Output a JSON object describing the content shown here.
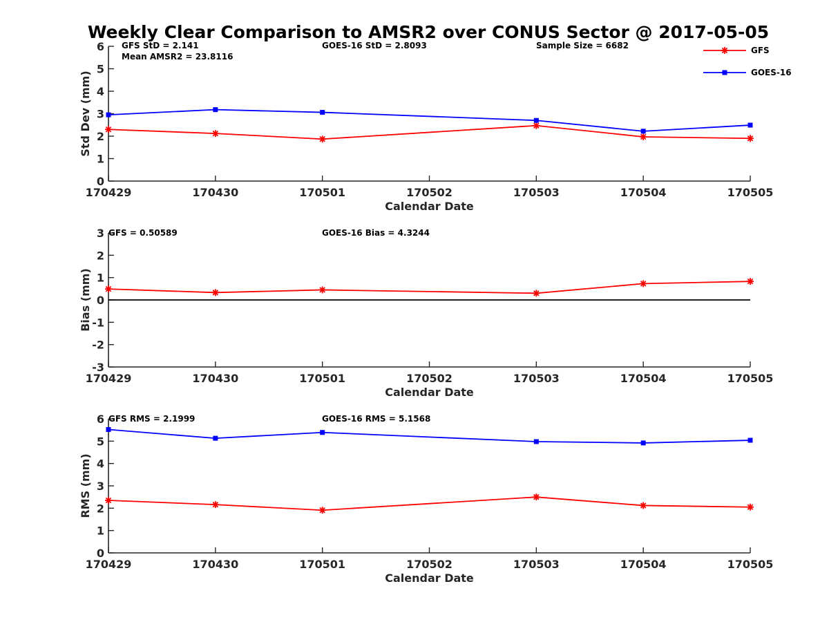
{
  "title": "Weekly Clear Comparison to AMSR2 over CONUS Sector @ 2017-05-05",
  "colors": {
    "GFS": "#ff0000",
    "GOES-16": "#0000ff",
    "axis": "#262626",
    "zero_line": "#000000"
  },
  "legend": {
    "placement": "top-right",
    "entries": [
      "GFS",
      "GOES-16"
    ]
  },
  "chart_data": [
    {
      "type": "line",
      "x": [
        "170429",
        "170430",
        "170501",
        "170503",
        "170504",
        "170505"
      ],
      "x_dates": [
        "2017-04-29",
        "2017-04-30",
        "2017-05-01",
        "2017-05-03",
        "2017-05-04",
        "2017-05-05"
      ],
      "xticks": [
        "170429",
        "170430",
        "170501",
        "170502",
        "170503",
        "170504",
        "170505"
      ],
      "xtick_dates": [
        "2017-04-29",
        "2017-04-30",
        "2017-05-01",
        "2017-05-02",
        "2017-05-03",
        "2017-05-04",
        "2017-05-05"
      ],
      "xlabel": "Calendar Date",
      "ylabel": "Std Dev (mm)",
      "ylim": [
        0,
        6
      ],
      "yticks": [
        0,
        1,
        2,
        3,
        4,
        5,
        6
      ],
      "grid": false,
      "series": [
        {
          "name": "GFS",
          "marker": "asterisk",
          "values": [
            2.3,
            2.12,
            1.87,
            2.47,
            1.97,
            1.9
          ]
        },
        {
          "name": "GOES-16",
          "marker": "square",
          "values": [
            2.95,
            3.18,
            3.06,
            2.7,
            2.22,
            2.49
          ]
        }
      ],
      "annotations": [
        "GFS StD = 2.141",
        "Mean AMSR2 = 23.8116",
        "GOES-16 StD = 2.8093",
        "Sample Size = 6682"
      ]
    },
    {
      "type": "line",
      "x": [
        "170429",
        "170430",
        "170501",
        "170503",
        "170504",
        "170505"
      ],
      "x_dates": [
        "2017-04-29",
        "2017-04-30",
        "2017-05-01",
        "2017-05-03",
        "2017-05-04",
        "2017-05-05"
      ],
      "xticks": [
        "170429",
        "170430",
        "170501",
        "170502",
        "170503",
        "170504",
        "170505"
      ],
      "xtick_dates": [
        "2017-04-29",
        "2017-04-30",
        "2017-05-01",
        "2017-05-02",
        "2017-05-03",
        "2017-05-04",
        "2017-05-05"
      ],
      "xlabel": "Calendar Date",
      "ylabel": "Bias (mm)",
      "ylim": [
        -3,
        3
      ],
      "yticks": [
        "-3",
        "-2",
        "-1",
        "0",
        "1",
        "2",
        "3"
      ],
      "grid": false,
      "reference_line": 0,
      "series": [
        {
          "name": "GFS",
          "marker": "asterisk",
          "values": [
            0.49,
            0.33,
            0.45,
            0.3,
            0.73,
            0.83
          ]
        }
      ],
      "annotations": [
        "GFS = 0.50589",
        "GOES-16 Bias  = 4.3244"
      ]
    },
    {
      "type": "line",
      "x": [
        "170429",
        "170430",
        "170501",
        "170503",
        "170504",
        "170505"
      ],
      "x_dates": [
        "2017-04-29",
        "2017-04-30",
        "2017-05-01",
        "2017-05-03",
        "2017-05-04",
        "2017-05-05"
      ],
      "xticks": [
        "170429",
        "170430",
        "170501",
        "170502",
        "170503",
        "170504",
        "170505"
      ],
      "xtick_dates": [
        "2017-04-29",
        "2017-04-30",
        "2017-05-01",
        "2017-05-02",
        "2017-05-03",
        "2017-05-04",
        "2017-05-05"
      ],
      "xlabel": "Calendar Date",
      "ylabel": "RMS (mm)",
      "ylim": [
        0,
        6
      ],
      "yticks": [
        0,
        1,
        2,
        3,
        4,
        5,
        6
      ],
      "grid": false,
      "series": [
        {
          "name": "GFS",
          "marker": "asterisk",
          "values": [
            2.35,
            2.16,
            1.91,
            2.5,
            2.12,
            2.05
          ]
        },
        {
          "name": "GOES-16",
          "marker": "square",
          "values": [
            5.52,
            5.13,
            5.39,
            4.98,
            4.92,
            5.04
          ]
        }
      ],
      "annotations": [
        "GFS RMS = 2.1999",
        "GOES-16 RMS = 5.1568"
      ]
    }
  ]
}
